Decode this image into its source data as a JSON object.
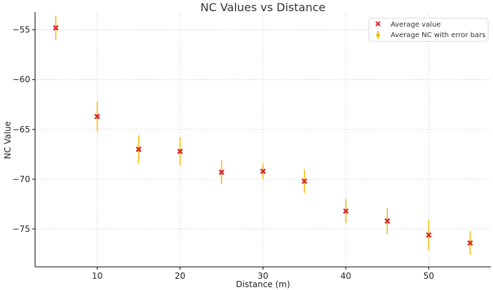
{
  "chart_data": {
    "type": "scatter",
    "title": "NC Values vs Distance",
    "xlabel": "Distance (m)",
    "ylabel": "NC Value",
    "xlim": [
      2.5,
      57.5
    ],
    "ylim": [
      -78.8,
      -53.2
    ],
    "xticks": [
      10,
      20,
      30,
      40,
      50
    ],
    "yticks": [
      -55,
      -60,
      -65,
      -70,
      -75
    ],
    "x_tick_labels": [
      "10",
      "20",
      "30",
      "40",
      "50"
    ],
    "y_tick_labels": [
      "−55",
      "−60",
      "−65",
      "−70",
      "−75"
    ],
    "grid": true,
    "legend_position": "top-right",
    "x": [
      5,
      10,
      15,
      20,
      25,
      30,
      35,
      40,
      45,
      50,
      55
    ],
    "series": [
      {
        "name": "Average value",
        "style": "x-marker",
        "color": "#d62728",
        "values": [
          -54.8,
          -63.7,
          -67.0,
          -67.2,
          -69.3,
          -69.2,
          -70.2,
          -73.2,
          -74.2,
          -75.6,
          -76.4
        ]
      },
      {
        "name": "Average NC with error bars",
        "style": "errorbar",
        "color": "#f5b700",
        "values": [
          -54.8,
          -63.7,
          -67.0,
          -67.2,
          -69.3,
          -69.2,
          -70.2,
          -73.2,
          -74.2,
          -75.6,
          -76.4
        ],
        "error": [
          1.2,
          1.5,
          1.4,
          1.4,
          1.2,
          0.8,
          1.2,
          1.2,
          1.3,
          1.5,
          1.2
        ]
      }
    ]
  }
}
